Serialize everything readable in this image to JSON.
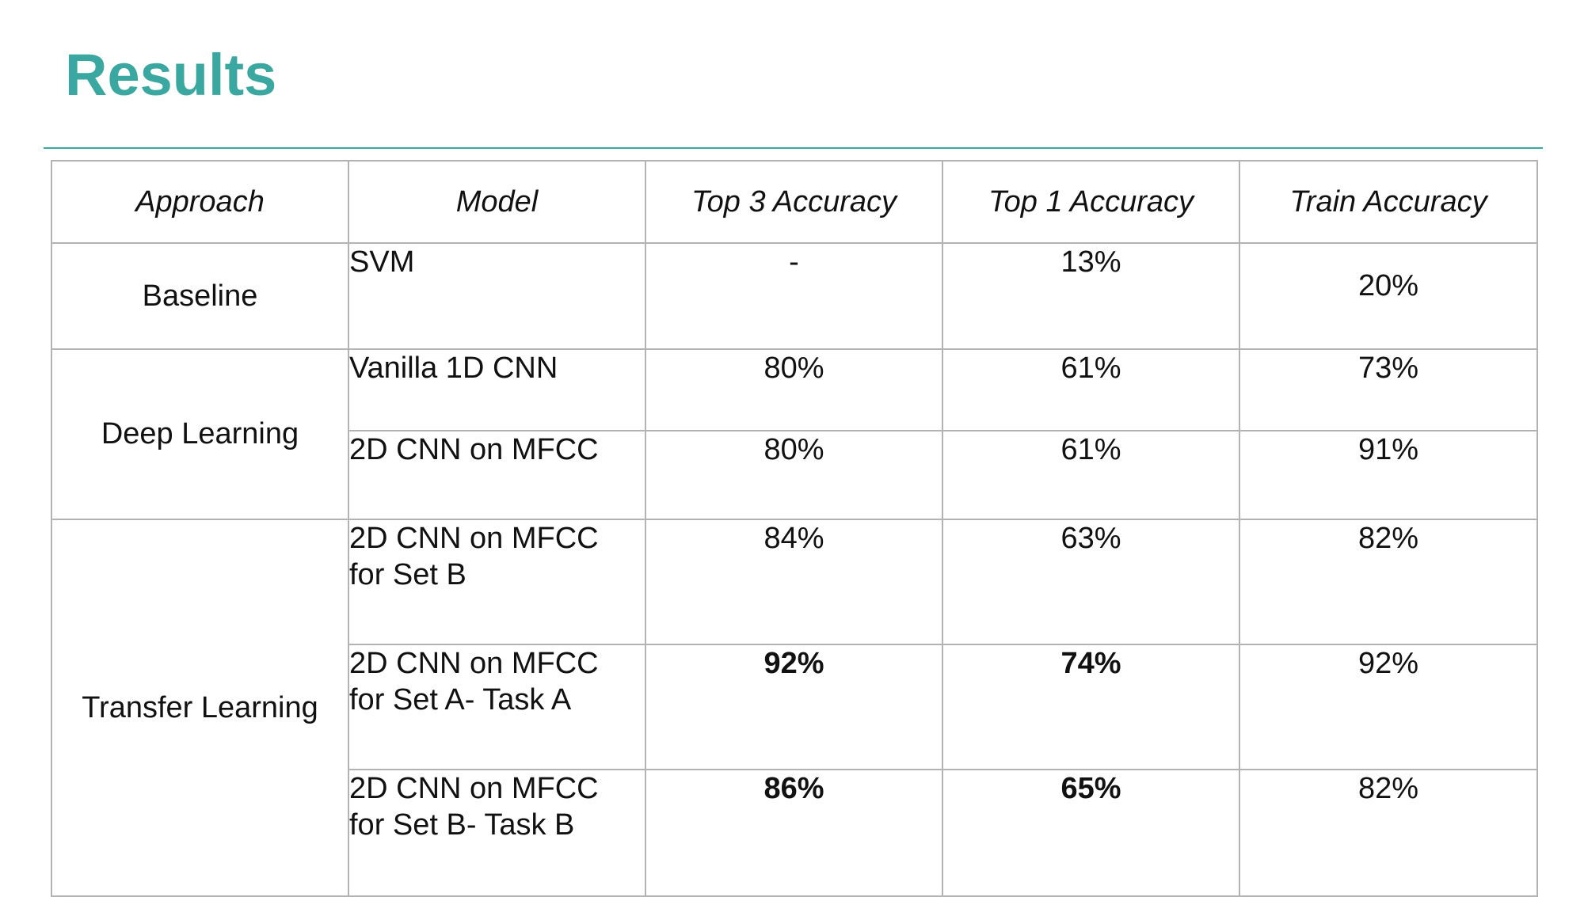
{
  "slide": {
    "title": "Results",
    "accent_color": "#3aa8a0"
  },
  "table": {
    "headers": [
      "Approach",
      "Model",
      "Top 3 Accuracy",
      "Top 1 Accuracy",
      "Train Accuracy"
    ],
    "groups": [
      {
        "approach": "Baseline",
        "rows": [
          {
            "model": "SVM",
            "top3": "-",
            "top1": "13%",
            "train": "20%"
          }
        ]
      },
      {
        "approach": "Deep Learning",
        "rows": [
          {
            "model": "Vanilla 1D CNN",
            "top3": "80%",
            "top1": "61%",
            "train": "73%"
          },
          {
            "model": "2D CNN on MFCC",
            "top3": "80%",
            "top1": "61%",
            "train": "91%"
          }
        ]
      },
      {
        "approach": "Transfer Learning",
        "rows": [
          {
            "model_line1": "2D CNN on MFCC",
            "model_line2": "for Set B",
            "top3": "84%",
            "top1": "63%",
            "train": "82%"
          },
          {
            "model_line1": "2D CNN on MFCC",
            "model_line2": "for Set A- Task A",
            "top3": "92%",
            "top1": "74%",
            "train": "92%",
            "bold": [
              "top3",
              "top1"
            ]
          },
          {
            "model_line1": "2D CNN on MFCC",
            "model_line2": "for Set B- Task B",
            "top3": "86%",
            "top1": "65%",
            "train": "82%",
            "bold": [
              "top3",
              "top1"
            ]
          }
        ]
      }
    ]
  }
}
